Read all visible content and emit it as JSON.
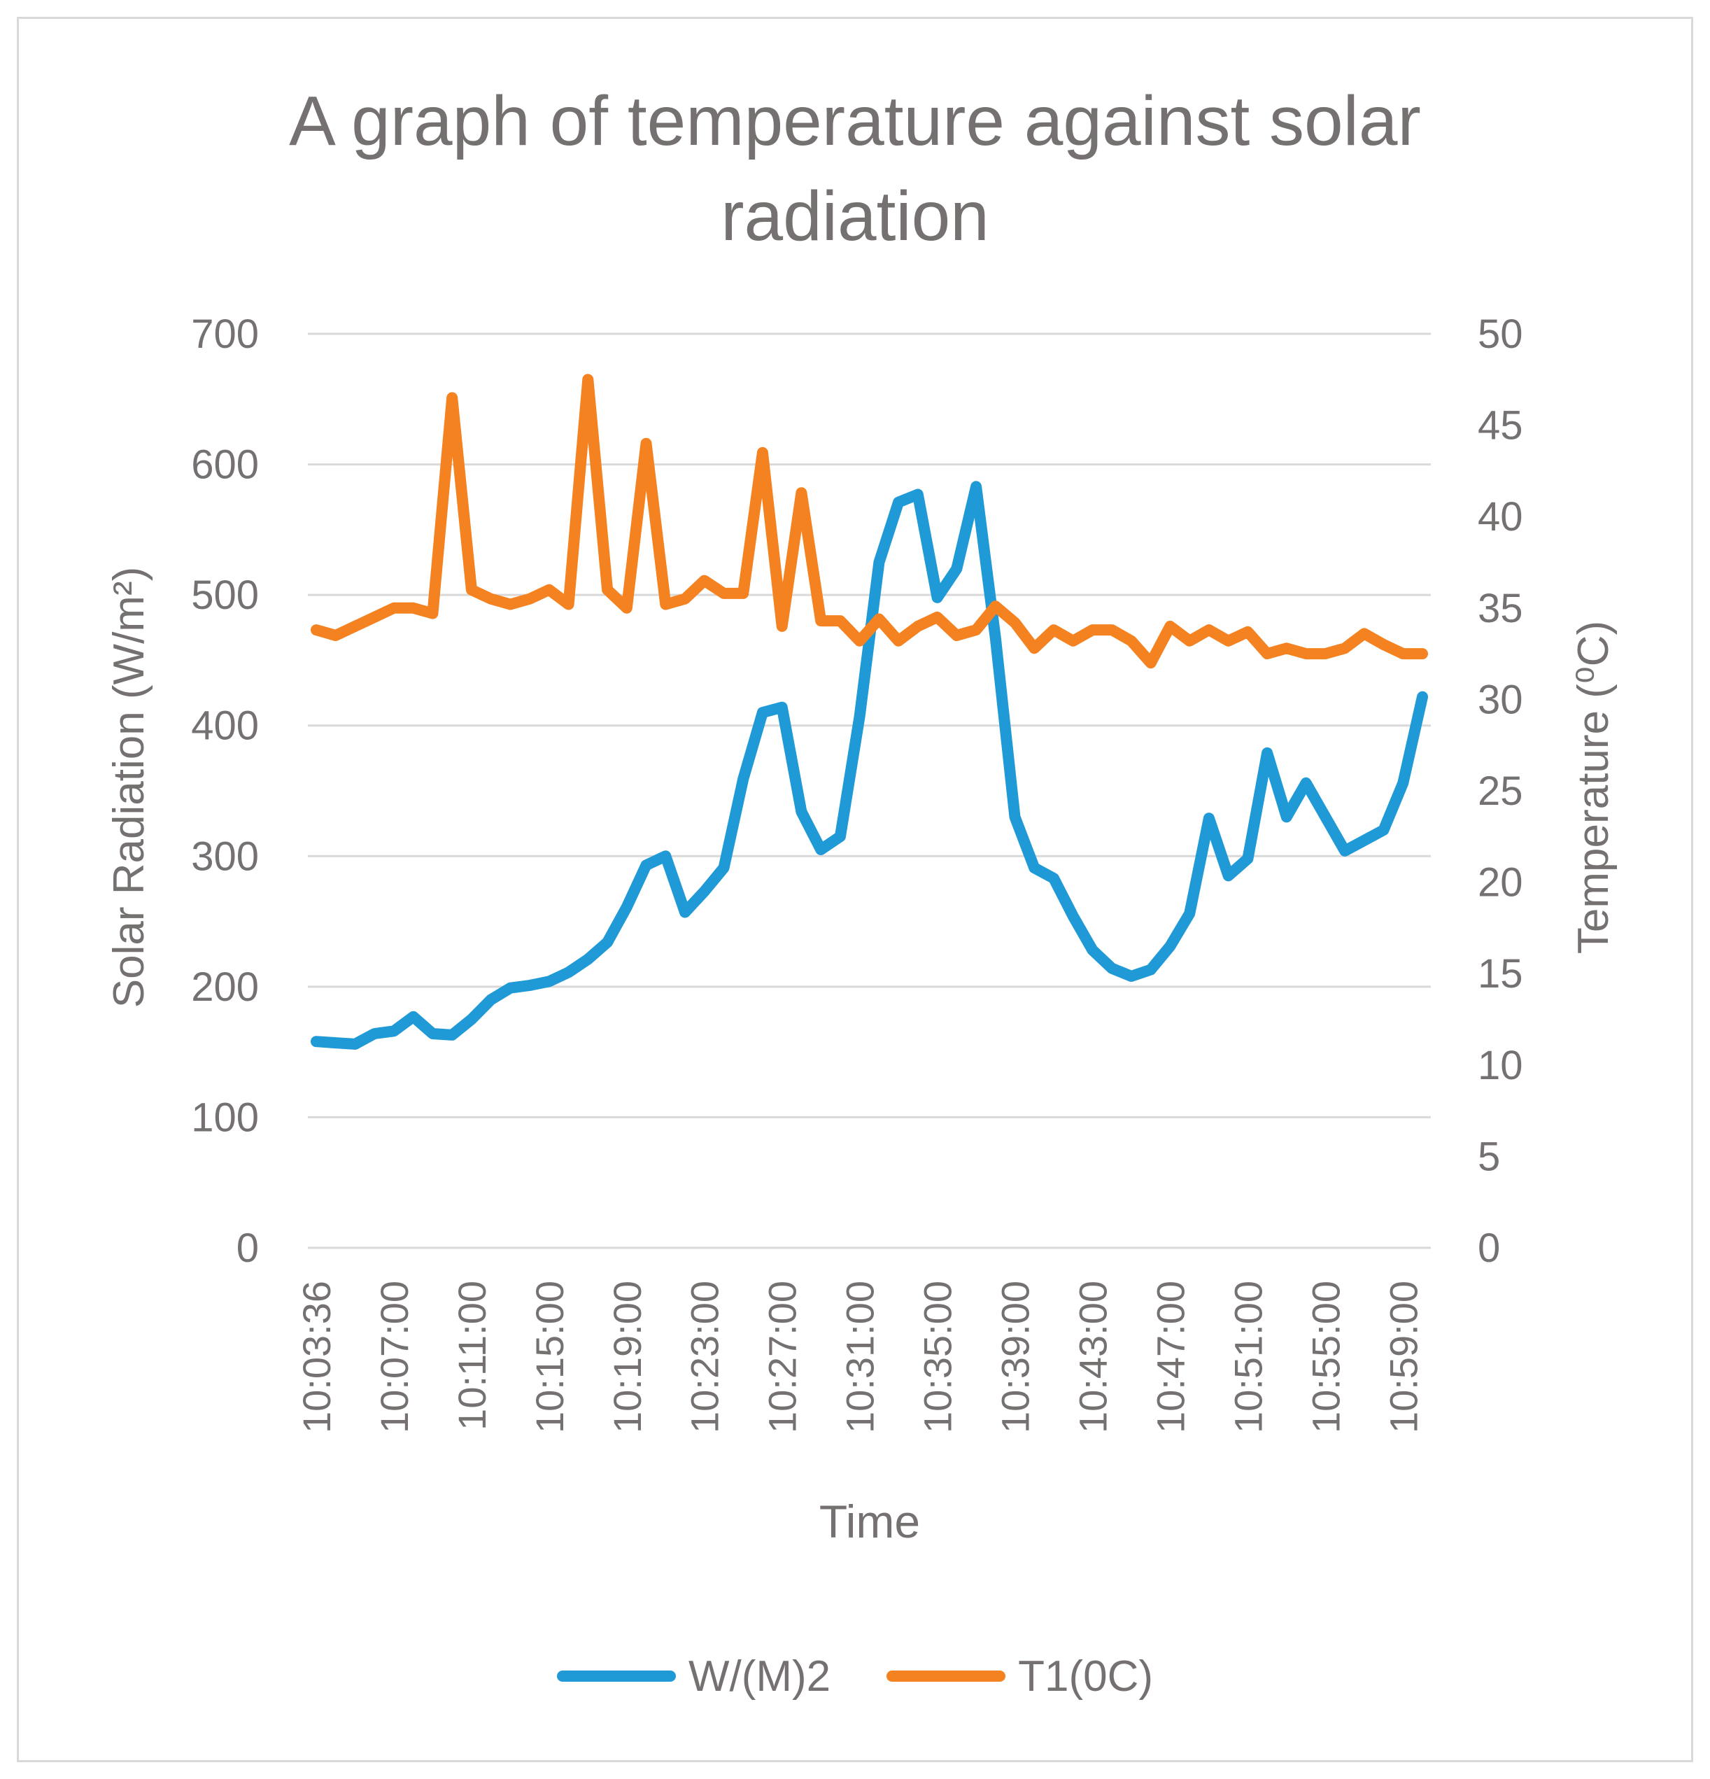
{
  "chart_data": {
    "type": "line",
    "title": [
      "A graph of temperature against solar",
      "radiation"
    ],
    "xlabel": "Time",
    "ylabel_left": "Solar Radiation (W/m²)",
    "ylabel_right": "Temperature (⁰C)",
    "ylim_left": [
      0,
      700
    ],
    "ylim_right": [
      0,
      50
    ],
    "yticks_left": [
      "0",
      "100",
      "200",
      "300",
      "400",
      "500",
      "600",
      "700"
    ],
    "yticks_right": [
      "0",
      "5",
      "10",
      "15",
      "20",
      "25",
      "30",
      "35",
      "40",
      "45",
      "50"
    ],
    "xtick_labels": [
      "10:03:36",
      "10:07:00",
      "10:11:00",
      "10:15:00",
      "10:19:00",
      "10:23:00",
      "10:27:00",
      "10:31:00",
      "10:35:00",
      "10:39:00",
      "10:43:00",
      "10:47:00",
      "10:51:00",
      "10:55:00",
      "10:59:00"
    ],
    "xtick_every": 4,
    "grid": true,
    "legend_position": "bottom",
    "series": [
      {
        "name": "W/(M)2",
        "axis": "left",
        "color": "#1f9ad6",
        "values": [
          158,
          157,
          156,
          164,
          166,
          177,
          164,
          163,
          175,
          190,
          199,
          201,
          204,
          211,
          221,
          234,
          261,
          293,
          300,
          257,
          273,
          291,
          359,
          410,
          414,
          334,
          305,
          315,
          407,
          525,
          571,
          577,
          498,
          520,
          583,
          467,
          330,
          291,
          283,
          254,
          228,
          214,
          208,
          213,
          231,
          256,
          329,
          285,
          298,
          379,
          330,
          356,
          330,
          304,
          312,
          320,
          356,
          422
        ]
      },
      {
        "name": "T1(0C)",
        "axis": "right",
        "color": "#f58220",
        "values": [
          33.8,
          33.5,
          34.0,
          34.5,
          35.0,
          35.0,
          34.7,
          46.5,
          36.0,
          35.5,
          35.2,
          35.5,
          36.0,
          35.2,
          47.5,
          36.0,
          35.0,
          44.0,
          35.2,
          35.5,
          36.5,
          35.8,
          35.8,
          43.5,
          34.0,
          41.3,
          34.3,
          34.3,
          33.2,
          34.4,
          33.2,
          34.0,
          34.5,
          33.5,
          33.8,
          35.1,
          34.2,
          32.8,
          33.8,
          33.2,
          33.8,
          33.8,
          33.2,
          32.0,
          34.0,
          33.2,
          33.8,
          33.2,
          33.7,
          32.5,
          32.8,
          32.5,
          32.5,
          32.8,
          33.6,
          33.0,
          32.5,
          32.5
        ]
      }
    ]
  }
}
